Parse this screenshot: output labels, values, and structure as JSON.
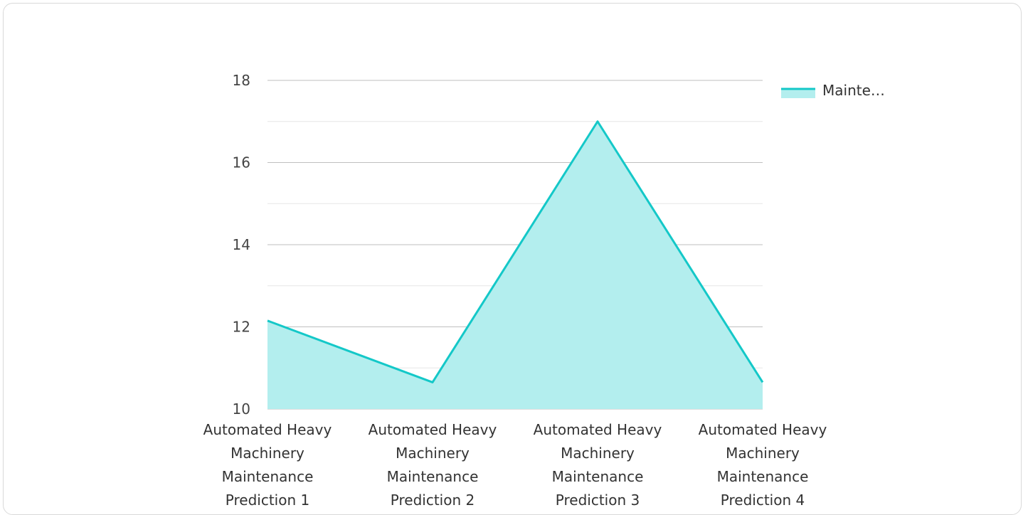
{
  "chart_data": {
    "type": "area",
    "categories": [
      [
        "Automated Heavy",
        "Machinery",
        "Maintenance",
        "Prediction 1"
      ],
      [
        "Automated Heavy",
        "Machinery",
        "Maintenance",
        "Prediction 2"
      ],
      [
        "Automated Heavy",
        "Machinery",
        "Maintenance",
        "Prediction 3"
      ],
      [
        "Automated Heavy",
        "Machinery",
        "Maintenance",
        "Prediction 4"
      ]
    ],
    "series": [
      {
        "name": "Mainte…",
        "values": [
          12.15,
          10.65,
          17.0,
          10.65
        ]
      }
    ],
    "ylim": [
      10,
      18
    ],
    "yticks": [
      10,
      12,
      14,
      16,
      18
    ],
    "grid": true,
    "legend": "top-right",
    "colors": {
      "line": "#14c8c8",
      "fill": "#b3eeee",
      "grid": "#bfbfbf",
      "minor_grid": "#e6e6e6"
    }
  }
}
